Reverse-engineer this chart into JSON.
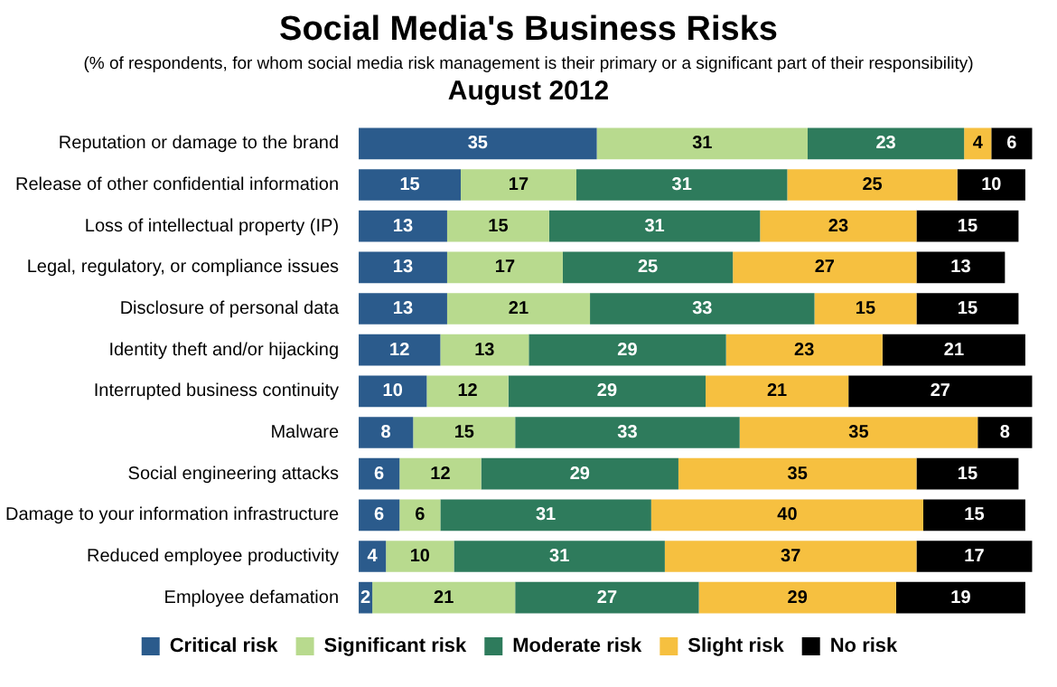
{
  "chart_data": {
    "type": "bar",
    "orientation": "horizontal",
    "stacked": true,
    "title": "Social Media's Business Risks",
    "subtitle": "(% of respondents, for whom social media risk management is their primary or a significant part of their responsibility)",
    "annotations": [
      "August 2012"
    ],
    "categories": [
      "Reputation or damage to the brand",
      "Release of other confidential information",
      "Loss of intellectual property (IP)",
      "Legal, regulatory, or compliance issues",
      "Disclosure of personal data",
      "Identity theft and/or hijacking",
      "Interrupted business continuity",
      "Malware",
      "Social engineering attacks",
      "Damage to your information infrastructure",
      "Reduced employee productivity",
      "Employee defamation"
    ],
    "series": [
      {
        "name": "Critical risk",
        "color": "#2b5b8c",
        "values": [
          35,
          15,
          13,
          13,
          13,
          12,
          10,
          8,
          6,
          6,
          4,
          2
        ]
      },
      {
        "name": "Significant risk",
        "color": "#b8da8e",
        "values": [
          31,
          17,
          15,
          17,
          21,
          13,
          12,
          15,
          12,
          6,
          10,
          21
        ]
      },
      {
        "name": "Moderate risk",
        "color": "#2e7b5c",
        "values": [
          23,
          31,
          31,
          25,
          33,
          29,
          29,
          33,
          29,
          31,
          31,
          27
        ]
      },
      {
        "name": "Slight risk",
        "color": "#f6c040",
        "values": [
          4,
          25,
          23,
          27,
          15,
          23,
          21,
          35,
          35,
          40,
          37,
          29
        ]
      },
      {
        "name": "No risk",
        "color": "#000000",
        "values": [
          6,
          10,
          15,
          13,
          15,
          21,
          27,
          8,
          15,
          15,
          17,
          19
        ]
      }
    ],
    "data_labels": true,
    "legend": "bottom",
    "tick_labels": "y"
  }
}
